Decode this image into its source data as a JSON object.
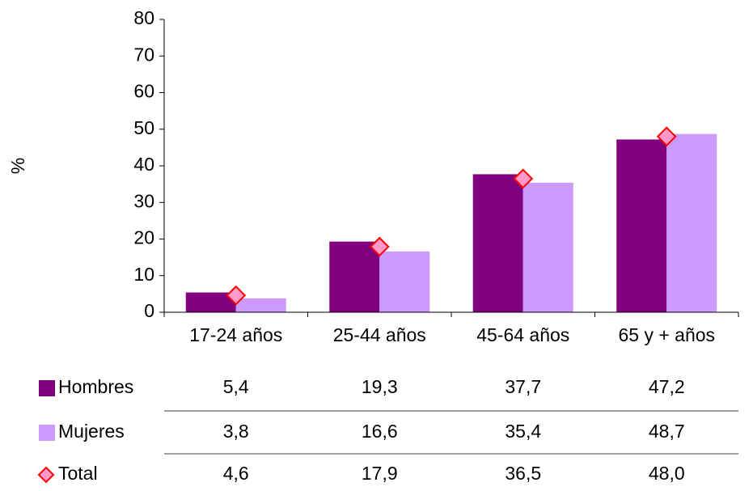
{
  "chart_data": {
    "type": "bar",
    "y_label": "%",
    "categories": [
      "17-24 años",
      "25-44 años",
      "45-64 años",
      "65 y + años"
    ],
    "series": [
      {
        "name": "Hombres",
        "color": "#800080",
        "values": [
          5.4,
          19.3,
          37.7,
          47.2
        ],
        "value_labels": [
          "5,4",
          "19,3",
          "37,7",
          "47,2"
        ]
      },
      {
        "name": "Mujeres",
        "color": "#cc99ff",
        "values": [
          3.8,
          16.6,
          35.4,
          48.7
        ],
        "value_labels": [
          "3,8",
          "16,6",
          "35,4",
          "48,7"
        ]
      },
      {
        "name": "Total",
        "color": "#ff99cc",
        "marker": "diamond",
        "edge_color": "#ff0000",
        "values": [
          4.6,
          17.9,
          36.5,
          48.0
        ],
        "value_labels": [
          "4,6",
          "17,9",
          "36,5",
          "48,0"
        ]
      }
    ],
    "ylim": [
      0,
      80
    ],
    "yticks": [
      0,
      10,
      20,
      30,
      40,
      50,
      60,
      70,
      80
    ]
  }
}
